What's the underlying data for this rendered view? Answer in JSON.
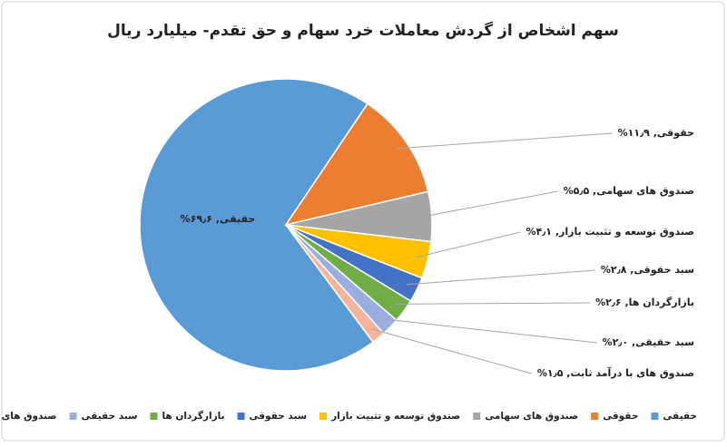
{
  "chart_data": {
    "type": "pie",
    "title": "سهم اشخاص از گردش معاملات خرد سهام و حق تقدم- میلیارد ریال",
    "categories": [
      "حقیقی",
      "حقوقی",
      "صندوق های سهامی",
      "صندوق توسعه و تثبیت بازار",
      "سبد حقوقی",
      "بازارگردان ها",
      "سبد حقیقی",
      "صندوق های با درآمد ثابت"
    ],
    "values": [
      69.6,
      11.9,
      5.5,
      4.1,
      2.8,
      2.6,
      2.0,
      1.5
    ],
    "value_labels": [
      "حقیقی, ۶۹٫۶%",
      "حقوقی, ۱۱٫۹%",
      "صندوق های سهامی, ۵٫۵%",
      "صندوق توسعه و تثبیت بازار, ۴٫۱%",
      "سبد حقوقی, ۲٫۸%",
      "بازارگردان ها, ۲٫۶%",
      "سبد حقیقی, ۲٫۰%",
      "صندوق های با درآمد ثابت, ۱٫۵%"
    ],
    "colors": [
      "#5b9bd5",
      "#ed7d31",
      "#a5a5a5",
      "#ffc000",
      "#4472c4",
      "#70ad47",
      "#9aaee0",
      "#f6b59a"
    ],
    "legend": "bottom"
  }
}
